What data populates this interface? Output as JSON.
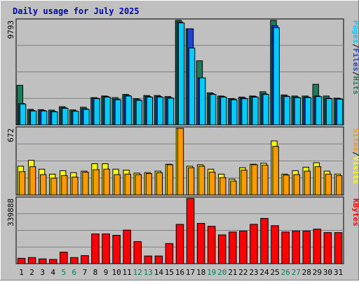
{
  "chart_data": {
    "type": "bar",
    "title": "Daily usage for July 2025",
    "categories": [
      "1",
      "2",
      "3",
      "4",
      "5",
      "6",
      "7",
      "8",
      "9",
      "10",
      "11",
      "12",
      "13",
      "14",
      "15",
      "16",
      "17",
      "18",
      "19",
      "20",
      "21",
      "22",
      "23",
      "24",
      "25",
      "26",
      "27",
      "28",
      "29",
      "30",
      "31"
    ],
    "weekend_days": [
      "5",
      "6",
      "12",
      "13",
      "19",
      "20",
      "26",
      "27"
    ],
    "panels": [
      {
        "id": "top",
        "ymax_label": "9793",
        "ymax": 9793,
        "right_labels": [
          "Pages",
          "Files",
          "Hits"
        ],
        "series": [
          {
            "name": "Hits",
            "color": "#1b7d5b",
            "values": [
              3700,
              1450,
              1420,
              1380,
              1700,
              1400,
              1650,
              2550,
              2700,
              2550,
              2850,
              2450,
              2750,
              2750,
              2650,
              9793,
              9000,
              6000,
              3000,
              2700,
              2450,
              2600,
              2700,
              3100,
              9793,
              2800,
              2700,
              2700,
              3800,
              2700,
              2500
            ]
          },
          {
            "name": "Files",
            "color": "#2244cc",
            "values": [
              2000,
              1350,
              1350,
              1250,
              1600,
              1300,
              1500,
              2500,
              2650,
              2400,
              2750,
              2350,
              2650,
              2650,
              2550,
              9650,
              9000,
              4400,
              2900,
              2650,
              2400,
              2500,
              2650,
              2900,
              9300,
              2700,
              2600,
              2600,
              2700,
              2500,
              2450
            ]
          },
          {
            "name": "Pages",
            "color": "#00ccff",
            "values": [
              1950,
              1300,
              1300,
              1220,
              1550,
              1270,
              1450,
              2450,
              2600,
              2350,
              2700,
              2300,
              2600,
              2600,
              2500,
              9550,
              7200,
              4400,
              2850,
              2600,
              2350,
              2450,
              2600,
              2850,
              9100,
              2650,
              2550,
              2550,
              2650,
              2450,
              2400
            ]
          }
        ]
      },
      {
        "id": "middle",
        "ymax_label": "672",
        "ymax": 672,
        "right_labels": [
          "Sites",
          "Visits"
        ],
        "series": [
          {
            "name": "Visits",
            "color": "#ffff00",
            "values": [
              290,
              350,
              260,
              210,
              245,
              225,
              240,
              315,
              315,
              260,
              250,
              220,
              225,
              240,
              310,
              672,
              290,
              305,
              260,
              210,
              160,
              275,
              310,
              320,
              545,
              210,
              245,
              280,
              325,
              240,
              210
            ]
          },
          {
            "name": "Sites",
            "color": "#ff9900",
            "values": [
              235,
              285,
              205,
              170,
              195,
              180,
              230,
              255,
              260,
              205,
              210,
              205,
              215,
              225,
              305,
              672,
              275,
              290,
              230,
              175,
              140,
              250,
              305,
              300,
              490,
              200,
              205,
              240,
              285,
              210,
              195
            ]
          }
        ]
      },
      {
        "id": "bottom",
        "ymax_label": "339888",
        "ymax": 339888,
        "right_labels": [
          "KBytes"
        ],
        "series": [
          {
            "name": "KBytes",
            "color": "#ff0000",
            "values": [
              28000,
              32000,
              25000,
              22000,
              60000,
              32000,
              42000,
              155000,
              155000,
              148000,
              175000,
              115000,
              40000,
              40000,
              105000,
              205000,
              339888,
              210000,
              195000,
              150000,
              165000,
              170000,
              205000,
              236000,
              198000,
              165000,
              170000,
              170000,
              180000,
              162000,
              162000
            ]
          }
        ]
      }
    ]
  }
}
